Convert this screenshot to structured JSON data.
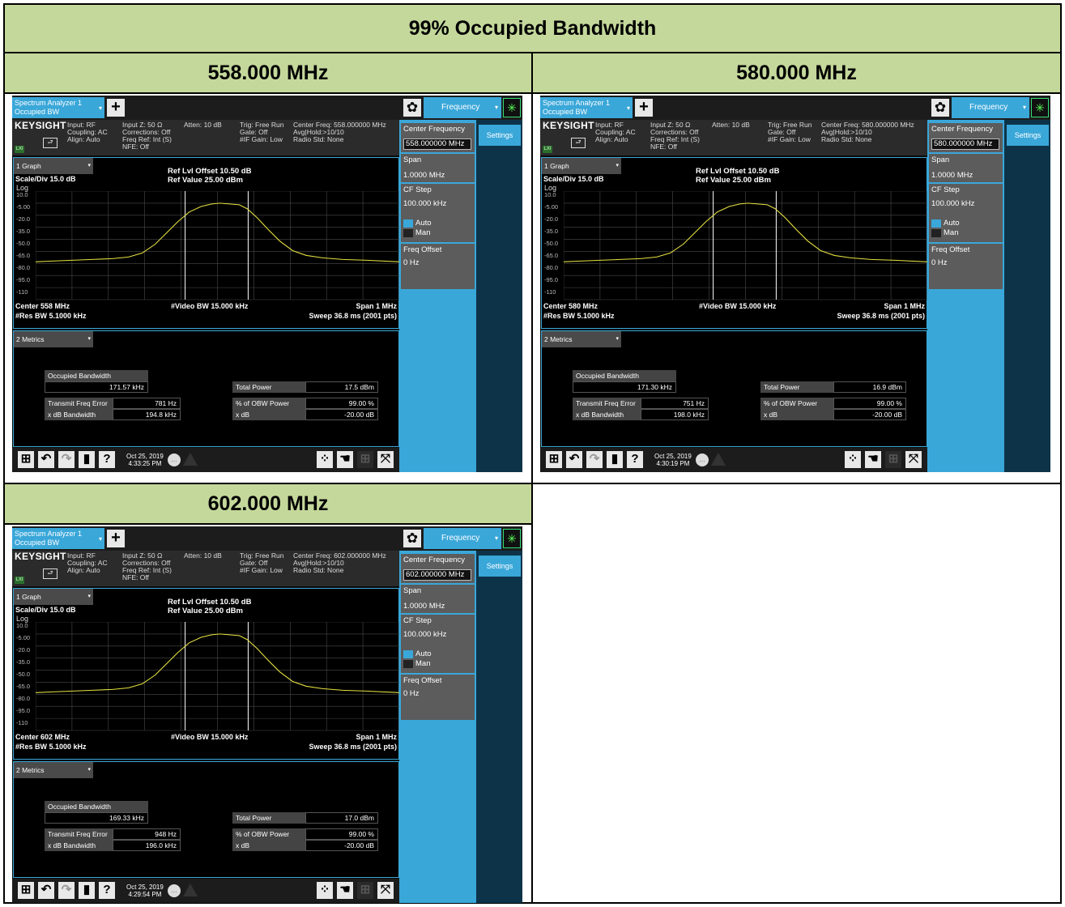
{
  "doc_title": "99% Occupied Bandwidth",
  "icons": {
    "plus": "+",
    "gear": "✿",
    "spinner": "✳",
    "monitor": "⮐",
    "windows": "⊞",
    "undo": "↶",
    "redo": "↷",
    "file": "▮",
    "help": "?",
    "dots": "⁘",
    "hand": "☚",
    "split": "⊞",
    "full": "⤧",
    "arrow": "▾",
    "bubble": "…"
  },
  "colors": {
    "accent": "#3aa7d9",
    "header_bg": "#c4d89b",
    "trace": "#e4e040",
    "softkey": "#5c5c5c"
  },
  "shots": [
    {
      "heading": "558.000 MHz",
      "app": {
        "tab_line1": "Spectrum Analyzer 1",
        "tab_line2": "Occupied BW",
        "menu": "Frequency",
        "settings_tab": "Settings"
      },
      "info": {
        "logo": "KEYSIGHT",
        "lxi": "LXI",
        "c1": "Input: RF\nCoupling: AC\nAlign: Auto",
        "c2": "Input Z: 50 Ω\nCorrections: Off\nFreq Ref: Int (S)\nNFE: Off",
        "c3": "Atten: 10 dB",
        "c4": "Trig: Free Run\nGate: Off\n#IF Gain: Low",
        "c5": "Center Freq: 558.000000 MHz\nAvg|Hold:>10/10\nRadio Std: None"
      },
      "softkeys": {
        "cf_label": "Center Frequency",
        "cf_value": "558.000000 MHz",
        "span_label": "Span",
        "span_value": "1.0000 MHz",
        "cfstep_label": "CF Step",
        "cfstep_value": "100.000 kHz",
        "auto": "Auto",
        "man": "Man",
        "foff_label": "Freq Offset",
        "foff_value": "0 Hz"
      },
      "graph": {
        "selector": "1 Graph",
        "scale": "Scale/Div 15.0 dB",
        "log": "Log",
        "ref_offset": "Ref Lvl Offset 10.50 dB",
        "ref_value": "Ref Value 25.00 dBm",
        "center": "Center 558 MHz",
        "res_bw": "#Res BW 5.1000 kHz",
        "video_bw": "#Video BW 15.000 kHz",
        "span": "Span 1 MHz",
        "sweep": "Sweep 36.8 ms (2001 pts)",
        "y_ticks": [
          "10.0",
          "-5.00",
          "-20.0",
          "-35.0",
          "-50.0",
          "-65.0",
          "-80.0",
          "-95.0",
          "-110"
        ]
      },
      "metrics": {
        "selector": "2 Metrics",
        "obw_label": "Occupied Bandwidth",
        "obw_value": "171.57 kHz",
        "tfe_label": "Transmit Freq Error",
        "tfe_value": "781 Hz",
        "xdb_bw_label": "x dB Bandwidth",
        "xdb_bw_value": "194.8 kHz",
        "tp_label": "Total Power",
        "tp_value": "17.5 dBm",
        "pct_label": "% of OBW Power",
        "pct_value": "99.00 %",
        "xdb_label": "x dB",
        "xdb_value": "-20.00 dB"
      },
      "taskbar": {
        "date": "Oct 25, 2019",
        "time": "4:33:25 PM"
      }
    },
    {
      "heading": "580.000 MHz",
      "app": {
        "tab_line1": "Spectrum Analyzer 1",
        "tab_line2": "Occupied BW",
        "menu": "Frequency",
        "settings_tab": "Settings"
      },
      "info": {
        "logo": "KEYSIGHT",
        "lxi": "LXI",
        "c1": "Input: RF\nCoupling: AC\nAlign: Auto",
        "c2": "Input Z: 50 Ω\nCorrections: Off\nFreq Ref: Int (S)\nNFE: Off",
        "c3": "Atten: 10 dB",
        "c4": "Trig: Free Run\nGate: Off\n#IF Gain: Low",
        "c5": "Center Freq: 580.000000 MHz\nAvg|Hold:>10/10\nRadio Std: None"
      },
      "softkeys": {
        "cf_label": "Center Frequency",
        "cf_value": "580.000000 MHz",
        "span_label": "Span",
        "span_value": "1.0000 MHz",
        "cfstep_label": "CF Step",
        "cfstep_value": "100.000 kHz",
        "auto": "Auto",
        "man": "Man",
        "foff_label": "Freq Offset",
        "foff_value": "0 Hz"
      },
      "graph": {
        "selector": "1 Graph",
        "scale": "Scale/Div 15.0 dB",
        "log": "Log",
        "ref_offset": "Ref Lvl Offset 10.50 dB",
        "ref_value": "Ref Value 25.00 dBm",
        "center": "Center 580 MHz",
        "res_bw": "#Res BW 5.1000 kHz",
        "video_bw": "#Video BW 15.000 kHz",
        "span": "Span 1 MHz",
        "sweep": "Sweep 36.8 ms (2001 pts)",
        "y_ticks": [
          "10.0",
          "-5.00",
          "-20.0",
          "-35.0",
          "-50.0",
          "-65.0",
          "-80.0",
          "-95.0",
          "-110"
        ]
      },
      "metrics": {
        "selector": "2 Metrics",
        "obw_label": "Occupied Bandwidth",
        "obw_value": "171.30 kHz",
        "tfe_label": "Transmit Freq Error",
        "tfe_value": "751 Hz",
        "xdb_bw_label": "x dB Bandwidth",
        "xdb_bw_value": "198.0 kHz",
        "tp_label": "Total Power",
        "tp_value": "16.9 dBm",
        "pct_label": "% of OBW Power",
        "pct_value": "99.00 %",
        "xdb_label": "x dB",
        "xdb_value": "-20.00 dB"
      },
      "taskbar": {
        "date": "Oct 25, 2019",
        "time": "4:30:19 PM"
      }
    },
    {
      "heading": "602.000 MHz",
      "app": {
        "tab_line1": "Spectrum Analyzer 1",
        "tab_line2": "Occupied BW",
        "menu": "Frequency",
        "settings_tab": "Settings"
      },
      "info": {
        "logo": "KEYSIGHT",
        "lxi": "LXI",
        "c1": "Input: RF\nCoupling: AC\nAlign: Auto",
        "c2": "Input Z: 50 Ω\nCorrections: Off\nFreq Ref: Int (S)\nNFE: Off",
        "c3": "Atten: 10 dB",
        "c4": "Trig: Free Run\nGate: Off\n#IF Gain: Low",
        "c5": "Center Freq: 602.000000 MHz\nAvg|Hold:>10/10\nRadio Std: None"
      },
      "softkeys": {
        "cf_label": "Center Frequency",
        "cf_value": "602.000000 MHz",
        "span_label": "Span",
        "span_value": "1.0000 MHz",
        "cfstep_label": "CF Step",
        "cfstep_value": "100.000 kHz",
        "auto": "Auto",
        "man": "Man",
        "foff_label": "Freq Offset",
        "foff_value": "0 Hz"
      },
      "graph": {
        "selector": "1 Graph",
        "scale": "Scale/Div 15.0 dB",
        "log": "Log",
        "ref_offset": "Ref Lvl Offset 10.50 dB",
        "ref_value": "Ref Value 25.00 dBm",
        "center": "Center 602 MHz",
        "res_bw": "#Res BW 5.1000 kHz",
        "video_bw": "#Video BW 15.000 kHz",
        "span": "Span 1 MHz",
        "sweep": "Sweep 36.8 ms (2001 pts)",
        "y_ticks": [
          "10.0",
          "-5.00",
          "-20.0",
          "-35.0",
          "-50.0",
          "-65.0",
          "-80.0",
          "-95.0",
          "-110"
        ]
      },
      "metrics": {
        "selector": "2 Metrics",
        "obw_label": "Occupied Bandwidth",
        "obw_value": "169.33 kHz",
        "tfe_label": "Transmit Freq Error",
        "tfe_value": "948 Hz",
        "xdb_bw_label": "x dB Bandwidth",
        "xdb_bw_value": "196.0 kHz",
        "tp_label": "Total Power",
        "tp_value": "17.0 dBm",
        "pct_label": "% of OBW Power",
        "pct_value": "99.00 %",
        "xdb_label": "x dB",
        "xdb_value": "-20.00 dB"
      },
      "taskbar": {
        "date": "Oct 25, 2019",
        "time": "4:29:54 PM"
      }
    }
  ]
}
